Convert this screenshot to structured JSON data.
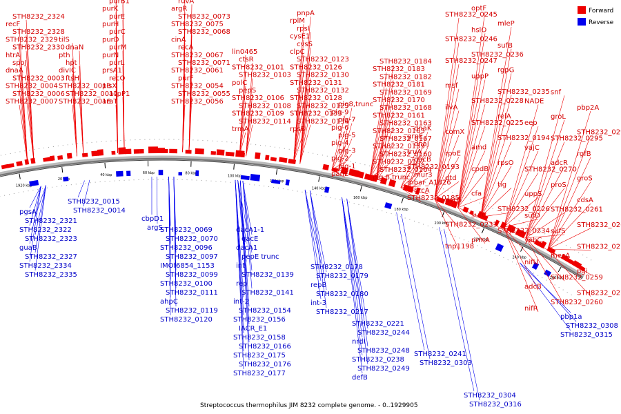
{
  "caption": "Streptococcus thermophilus JIM 8232 complete genome. - 0..1929905",
  "legend": [
    {
      "label": "Forward",
      "color": "#ee0000"
    },
    {
      "label": "Reverse",
      "color": "#0000ee"
    }
  ],
  "colors": {
    "forward": "#ee0000",
    "reverse": "#0000ee",
    "backbone": "#777777"
  },
  "ticks": [
    "1920 kbp",
    "20 kbp",
    "40 kbp",
    "60 kbp",
    "80 kbp",
    "100 kbp",
    "120 kbp",
    "140 kbp",
    "160 kbp",
    "180 kbp",
    "200 kbp",
    "220 kbp",
    "240 kbp",
    "260 kbp"
  ],
  "forward_labels": [
    "STH8232_0007",
    "STH8232_0006",
    "STH8232_0004",
    "STH8232_0003",
    "dnaA",
    "spoJ",
    "htrA",
    "STH8232_2330",
    "STH8232_2329",
    "STH8232_2328",
    "recF",
    "STH8232_2324",
    "STH8232_0018",
    "STH8232_0017",
    "STH8232_0016",
    "ftsH",
    "divIC",
    "hpt",
    "pth",
    "dnaN",
    "tilS",
    "araT",
    "acpP1",
    "plsX",
    "recO",
    "prsA1",
    "purL",
    "purN",
    "purM",
    "purD",
    "purC",
    "purH",
    "purE",
    "purK",
    "purB1",
    "STH8232_0040",
    "STH8232_0042",
    "mreD",
    "STH8232_0056",
    "STH8232_0055",
    "STH8232_0054",
    "purF",
    "STH8232_0061",
    "STH8232_0071",
    "STH8232_0067",
    "recA",
    "cinA",
    "STH8232_0068",
    "STH8232_0075",
    "STH8232_0073",
    "argR",
    "ruvA",
    "mutL",
    "trmA",
    "STH8232_0114",
    "STH8232_0109",
    "STH8232_0108",
    "STH8232_0106",
    "pepS",
    "polC",
    "STH8232_0103",
    "STH8232_0101",
    "ctsR",
    "lin0465",
    "rpsB",
    "STH8232_0134",
    "STH8232_0133",
    "STH8232_0129",
    "STH8232_0128",
    "STH8232_0132",
    "STH8232_0131",
    "STH8232_0130",
    "STH8232_0126",
    "STH8232_0123",
    "clpC",
    "cvsS",
    "cysE1",
    "rpsI",
    "rplM",
    "pnpA",
    "panE",
    "pig-1",
    "pig-2",
    "pig-3",
    "pig-4",
    "pig-5",
    "pig-6",
    "pig-7",
    "pig-9",
    "pig8,trunc",
    "pig 8,trunc",
    "STH8232_0164",
    "STH8232_0162",
    "STH8232_0160",
    "STH8232_0159",
    "STH8232_0167",
    "STH8232_0165",
    "STH8232_0163",
    "STH8232_0161",
    "STH8232_0168",
    "STH8232_0170",
    "STH8232_0169",
    "STH8232_0181",
    "STH8232_0182",
    "STH8232_0183",
    "STH8232_0184",
    "STH8232_0185",
    "hrcA",
    "mbar_A1826",
    "mur3",
    "STH8232_0193",
    "dacB",
    "truA",
    "dnaJ",
    "grpE",
    "dnaK",
    "tnp1198",
    "prmA",
    "STH8232_0234",
    "STH8232_0233",
    "sufC",
    "STH8232_0226",
    "pyrG",
    "cfa",
    "tig",
    "dtd",
    "cpdB",
    "rpsO",
    "rpoE",
    "amd",
    "STH8232_0194",
    "comX",
    "STH8232_0225",
    "relA",
    "ilvA",
    "STH8232_0228",
    "STH8232_0235",
    "msf",
    "uppP",
    "rgpG",
    "STH8232_0247",
    "STH8232_0236",
    "sufB",
    "STH8232_0246",
    "hslO",
    "mleP",
    "STH8232_0245",
    "optF",
    "nifR",
    "STH8232_0260",
    "STH8232_0274",
    "adcB",
    "STH8232_0259",
    "pgi",
    "nifU",
    "mecA",
    "STH8232_0271",
    "yebC",
    "sufS",
    "STH8232_0269",
    "sufD",
    "STH8232_0261",
    "cdsA",
    "uppS",
    "proS",
    "groS",
    "STH8232_0270",
    "adcR",
    "rgfB",
    "vajC",
    "STH8232_0295",
    "STH8232_0294",
    "eep",
    "groL",
    "pbp2A",
    "NADE",
    "snf"
  ],
  "reverse_labels": [
    "pgsA",
    "STH8232_2321",
    "STH8232_2322",
    "STH8232_2323",
    "guaB",
    "STH8232_2327",
    "STH8232_2334",
    "STH8232_2335",
    "STH8232_0015",
    "STH8232_0014",
    "cbpD1",
    "argS",
    "STH8232_0069",
    "STH8232_0070",
    "STH8232_0096",
    "STH8232_0097",
    "IMOf6854_1153",
    "STH8232_0099",
    "STH8232_0100",
    "STH8232_0111",
    "ahpC",
    "STH8232_0119",
    "STH8232_0120",
    "dacA1-1",
    "qacE",
    "dacA1",
    "pepE trunc",
    "int",
    "STH8232_0139",
    "rep",
    "STH8232_0141",
    "int-2",
    "STH8232_0154",
    "STH8232_0156",
    "IACR_E1",
    "STH8232_0158",
    "STH8232_0166",
    "STH8232_0175",
    "STH8232_0176",
    "STH8232_0177",
    "STH8232_0178",
    "STH8232_0179",
    "repB",
    "STH8232_0180",
    "int-3",
    "STH8232_0217",
    "STH8232_0221",
    "STH8232_0244",
    "nrdI",
    "STH8232_0248",
    "STH8232_0238",
    "STH8232_0249",
    "defB",
    "STH8232_0241",
    "STH8232_0303",
    "STH8232_0304",
    "STH8232_0316",
    "pbp1a",
    "STH8232_0308",
    "STH8232_0315",
    "recU"
  ]
}
